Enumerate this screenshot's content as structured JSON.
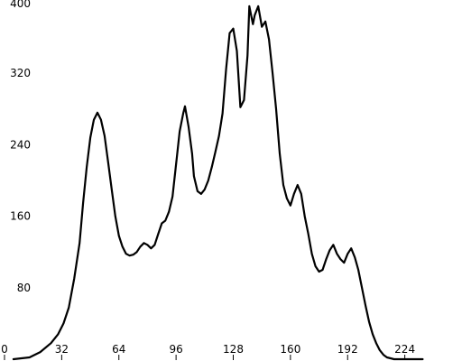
{
  "chart_data": {
    "type": "line",
    "title": "",
    "xlabel": "",
    "ylabel": "",
    "xlim": [
      0,
      256
    ],
    "ylim": [
      0,
      400
    ],
    "x_ticks": [
      "0",
      "32",
      "64",
      "96",
      "128",
      "160",
      "192",
      "224"
    ],
    "y_ticks": [
      "80",
      "160",
      "240",
      "320",
      "400"
    ],
    "grid": false,
    "legend": "none",
    "colors": {
      "line": "#000000",
      "background": "#ffffff"
    },
    "series": [
      {
        "x": [
          5,
          14,
          20,
          26,
          30,
          33,
          36,
          39,
          42,
          44,
          46,
          48,
          50,
          52,
          54,
          56,
          58,
          60,
          62,
          64,
          66,
          68,
          70,
          72,
          74,
          76,
          78,
          80,
          82,
          84,
          86,
          88,
          90,
          92,
          94,
          96,
          98,
          100,
          101,
          103,
          105,
          106,
          108,
          110,
          112,
          114,
          116,
          118,
          120,
          122,
          124,
          126,
          128,
          130,
          132,
          134,
          136,
          137,
          139,
          140,
          142,
          144,
          146,
          148,
          150,
          152,
          154,
          156,
          158,
          160,
          162,
          164,
          166,
          168,
          170,
          172,
          174,
          176,
          178,
          180,
          182,
          184,
          186,
          188,
          190,
          192,
          194,
          196,
          198,
          200,
          202,
          204,
          206,
          208,
          210,
          212,
          214,
          216,
          218,
          220,
          222,
          224,
          226,
          228,
          230,
          234
        ],
        "y": [
          0,
          2,
          8,
          18,
          28,
          40,
          58,
          90,
          130,
          175,
          215,
          248,
          268,
          276,
          268,
          250,
          220,
          190,
          160,
          138,
          126,
          118,
          116,
          117,
          120,
          126,
          130,
          128,
          124,
          128,
          140,
          152,
          155,
          165,
          182,
          218,
          255,
          275,
          283,
          260,
          230,
          205,
          188,
          185,
          190,
          200,
          215,
          232,
          250,
          275,
          325,
          365,
          370,
          345,
          282,
          290,
          340,
          395,
          375,
          385,
          395,
          372,
          378,
          358,
          320,
          280,
          230,
          195,
          180,
          172,
          185,
          195,
          185,
          160,
          140,
          118,
          104,
          98,
          100,
          112,
          122,
          128,
          118,
          112,
          108,
          118,
          124,
          114,
          100,
          80,
          60,
          42,
          28,
          18,
          10,
          5,
          2,
          1,
          0,
          0,
          0,
          0,
          0,
          0,
          0,
          0
        ]
      }
    ]
  }
}
